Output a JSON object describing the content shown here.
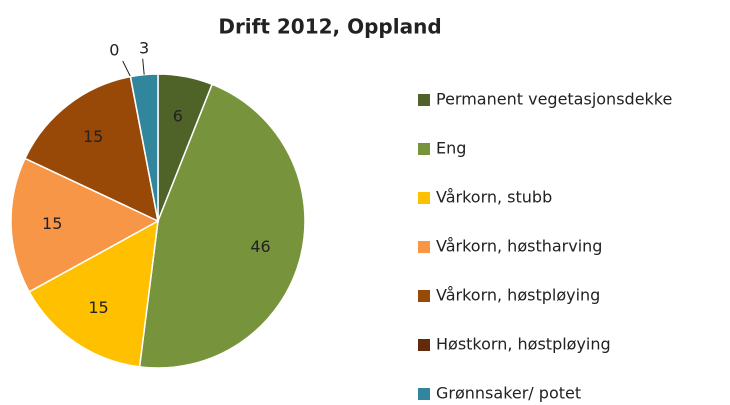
{
  "chart_data": {
    "type": "pie",
    "title": "Drift 2012, Oppland",
    "categories": [
      "Permanent vegetasjonsdekke",
      "Eng",
      "Vårkorn, stubb",
      "Vårkorn, høstharving",
      "Vårkorn, høstpløying",
      "Høstkorn, høstpløying",
      "Grønnsaker/ potet"
    ],
    "values": [
      6,
      46,
      15,
      15,
      15,
      0,
      3
    ],
    "colors": [
      "#4f6228",
      "#77933c",
      "#ffc000",
      "#f79646",
      "#984807",
      "#632a0c",
      "#31859c"
    ],
    "legend": "right"
  }
}
